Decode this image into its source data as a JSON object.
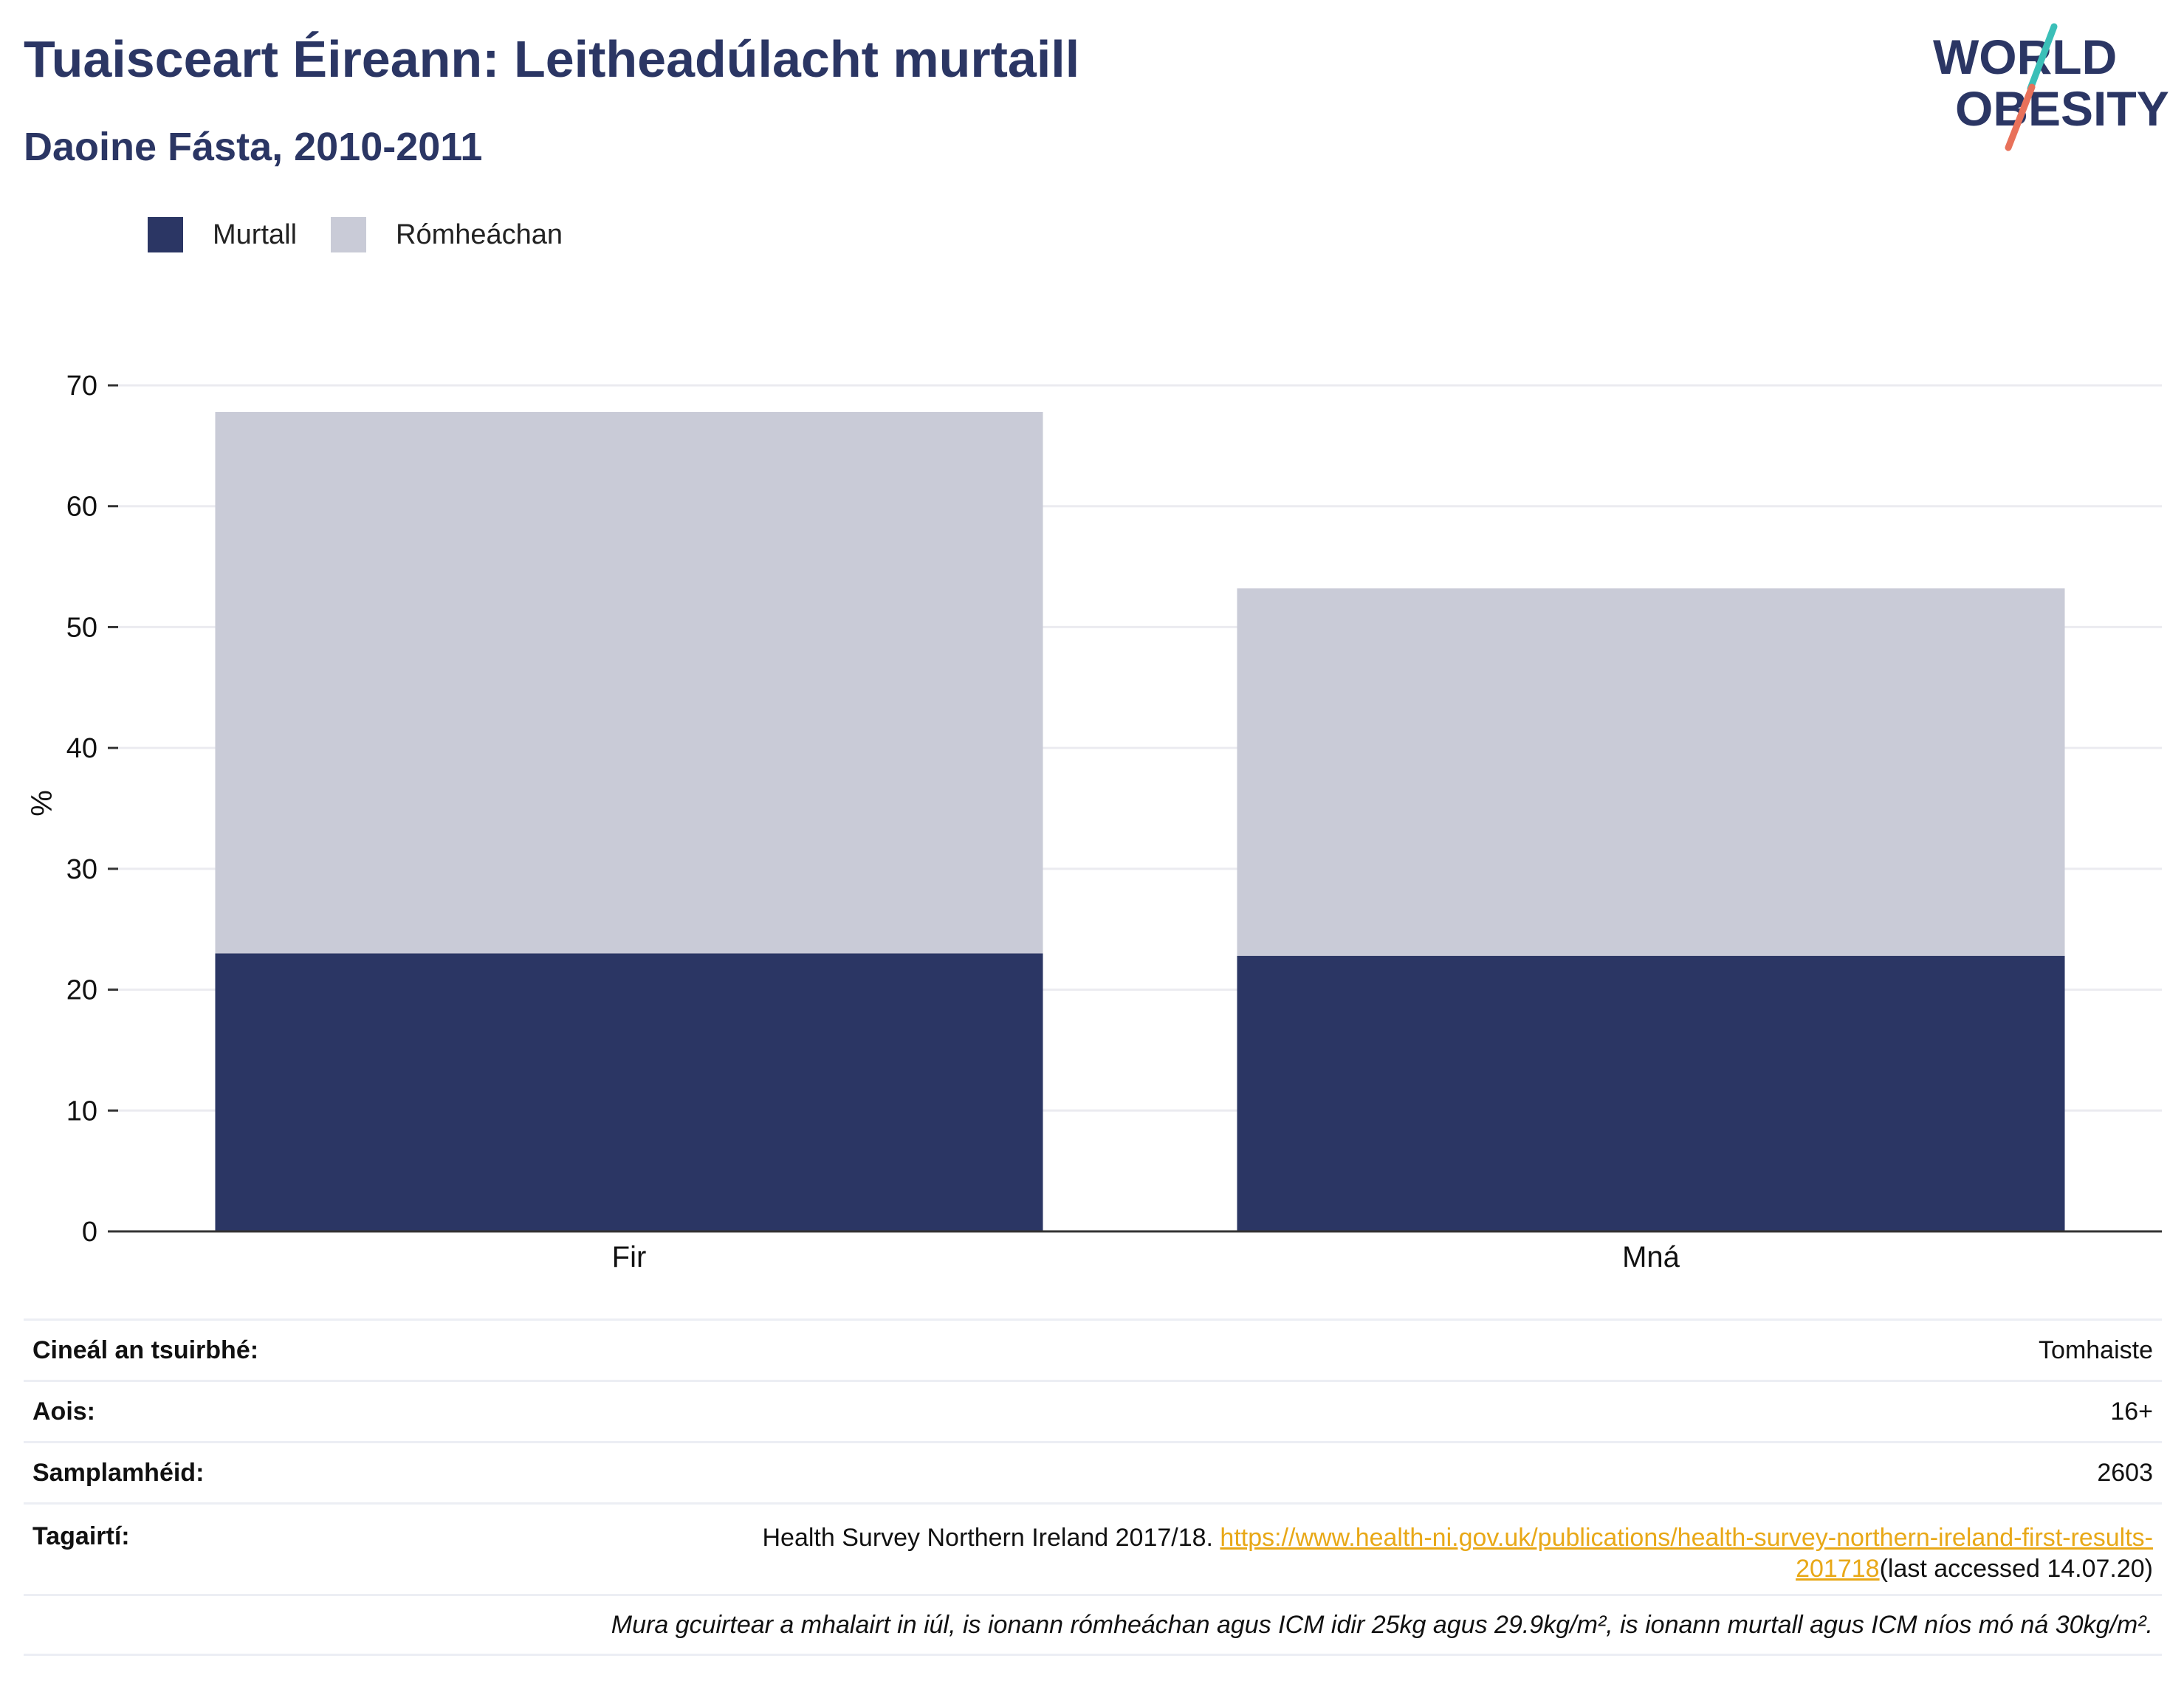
{
  "header": {
    "title": "Tuaisceart Éireann: Leitheadúlacht murtaill",
    "subtitle": "Daoine Fásta, 2010-2011"
  },
  "logo": {
    "line1": "WORLD",
    "line2": "OBESITY",
    "icon": "world-obesity-logo"
  },
  "colors": {
    "obese": "#2b3664",
    "overweight": "#c9cbd7",
    "brand_text": "#2b3664",
    "slash_teal": "#3bbfb8",
    "slash_coral": "#e8715a",
    "link": "#e8a817",
    "grid": "#ebebf0"
  },
  "chart_data": {
    "type": "bar",
    "stacked": true,
    "categories": [
      "Fir",
      "Mná"
    ],
    "series": [
      {
        "name": "Murtall",
        "values": [
          23.0,
          22.8
        ]
      },
      {
        "name": "Rómheáchan",
        "values": [
          44.8,
          30.4
        ]
      }
    ],
    "ylabel": "%",
    "xlabel": "",
    "ylim": [
      0,
      70
    ],
    "yticks": [
      0,
      10,
      20,
      30,
      40,
      50,
      60,
      70
    ],
    "grid": true,
    "legend": "top-left"
  },
  "info": {
    "survey_type_label": "Cineál an tsuirbhé:",
    "survey_type_value": "Tomhaiste",
    "age_label": "Aois:",
    "age_value": "16+",
    "sample_label": "Samplamhéid:",
    "sample_value": "2603",
    "references_label": "Tagairtí:",
    "references_text": "Health Survey Northern Ireland 2017/18. ",
    "references_link": "https://www.health-ni.gov.uk/publications/health-survey-northern-ireland-first-results-201718",
    "references_suffix": "(last accessed 14.07.20)",
    "note": "Mura gcuirtear a mhalairt in iúl, is ionann rómheáchan agus ICM idir 25kg agus 29.9kg/m², is ionann murtall agus ICM níos mó ná 30kg/m²."
  }
}
